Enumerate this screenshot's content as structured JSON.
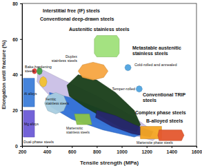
{
  "chart_data": {
    "type": "region",
    "x_label": "Tensile strength (MPa)",
    "y_label": "Elongation until fracture (%)",
    "xlim": [
      200,
      1600
    ],
    "xticks": [
      200,
      400,
      600,
      800,
      1000,
      1200,
      1400,
      1600
    ],
    "ylim": [
      0,
      80
    ],
    "yticks": [
      0,
      20,
      40,
      60,
      80
    ],
    "series": [
      {
        "color": "#c9bfe6",
        "x": [
          330,
          500,
          800,
          1100,
          1300,
          1250,
          1000,
          700,
          450,
          320
        ],
        "y": [
          44,
          38,
          28,
          16,
          6,
          3,
          8,
          16,
          26,
          36
        ]
      },
      {
        "name": "Dual-phase steels",
        "color": "#2e6fd6",
        "x": [
          420,
          600,
          850,
          1100,
          1180,
          1100,
          850,
          600,
          430
        ],
        "y": [
          30,
          27,
          20,
          12,
          7,
          5,
          9,
          15,
          22
        ]
      },
      {
        "name": "Ferritic stainless steels",
        "color": "#a9cde0",
        "x": [
          560,
          534,
          470,
          406,
          380,
          406,
          470,
          534
        ],
        "y": [
          24,
          28.2,
          30,
          28.2,
          24,
          19.8,
          18,
          19.8
        ]
      },
      {
        "name": "Al alloys",
        "color": "#3c7dd9",
        "x": [
          210,
          300,
          300,
          210
        ],
        "y": [
          38,
          38,
          22,
          22
        ]
      },
      {
        "name": "Mg alloys",
        "color": "#6b5bd6",
        "x": [
          210,
          300,
          300,
          210
        ],
        "y": [
          20,
          20,
          5,
          5
        ]
      },
      {
        "name": "Conventional TRIP steels",
        "color": "#183d18",
        "x": [
          560,
          650,
          800,
          950,
          1100,
          1150,
          1120,
          1000,
          850,
          700,
          580
        ],
        "y": [
          34,
          40,
          37,
          30,
          20,
          12,
          8,
          10,
          16,
          22,
          28
        ]
      },
      {
        "name": "Complex phase steels",
        "color": "#27276e",
        "x": [
          800,
          950,
          1100,
          1250,
          1230,
          1080,
          920,
          790
        ],
        "y": [
          20,
          17,
          12,
          8,
          5,
          7,
          11,
          16
        ]
      },
      {
        "name": "Martensite phase steels",
        "color": "#f5a623",
        "x": [
          1150,
          1320,
          1320,
          1150
        ],
        "y": [
          11,
          11,
          4,
          4
        ]
      },
      {
        "name": "B-alloyed steels",
        "color": "#e4572e",
        "x": [
          1300,
          1480,
          1500,
          1480,
          1300,
          1290
        ],
        "y": [
          9,
          9,
          6,
          3,
          3,
          6
        ]
      },
      {
        "name": "Martensitic stainless steels",
        "color": "#8bc34a",
        "x": [
          620,
          740,
          760,
          640
        ],
        "y": [
          18,
          18,
          12,
          12
        ]
      },
      {
        "name": "Duplex stainless steels",
        "color": "#f7a541",
        "x": [
          890,
          855,
          770,
          685,
          650,
          685,
          770,
          855
        ],
        "y": [
          42,
          45.5,
          47,
          45.5,
          42,
          38.5,
          37,
          38.5
        ]
      },
      {
        "name": "Austenitic stainless steels",
        "color": "#9fe07a",
        "x": [
          800,
          960,
          980,
          980,
          960,
          800,
          780,
          780
        ],
        "y": [
          62,
          62,
          60,
          52,
          50,
          50,
          52,
          60
        ]
      },
      {
        "name": "Cold-rolled and annealed",
        "color": "#4fa3e0",
        "x": [
          1075,
          1068,
          1050,
          1032,
          1025,
          1032,
          1050,
          1068
        ],
        "y": [
          44,
          45.3,
          45.8,
          45.3,
          44,
          42.7,
          42.2,
          42.7
        ]
      },
      {
        "name": "Temper-rolled",
        "color": "#4fa3e0",
        "x": [
          1165,
          1158,
          1140,
          1122,
          1115,
          1122,
          1140,
          1158
        ],
        "y": [
          32,
          33.3,
          33.8,
          33.3,
          32,
          30.7,
          30.2,
          30.7
        ]
      },
      {
        "name": "Bake-hardening steels",
        "color": "#f2c12e",
        "x": [
          400,
          391,
          370,
          349,
          340,
          349,
          370,
          391
        ],
        "y": [
          36,
          38.1,
          39,
          38.1,
          36,
          33.9,
          33,
          33.9
        ]
      },
      {
        "name": "Interstitial free (IF) steels",
        "color": "#e53935",
        "x": [
          318,
          313,
          300,
          287,
          282,
          287,
          300,
          313
        ],
        "y": [
          42,
          43.1,
          43.5,
          43.1,
          42,
          40.9,
          40.5,
          40.9
        ]
      },
      {
        "name": "Conventional deep-drawn steels",
        "color": "#43a047",
        "x": [
          362,
          356,
          340,
          324,
          318,
          324,
          340,
          356
        ],
        "y": [
          42,
          43.4,
          44,
          43.4,
          42,
          40.6,
          40,
          40.6
        ]
      }
    ],
    "annotations": [
      {
        "text": "Metastable austenitic stainless steels"
      }
    ]
  }
}
